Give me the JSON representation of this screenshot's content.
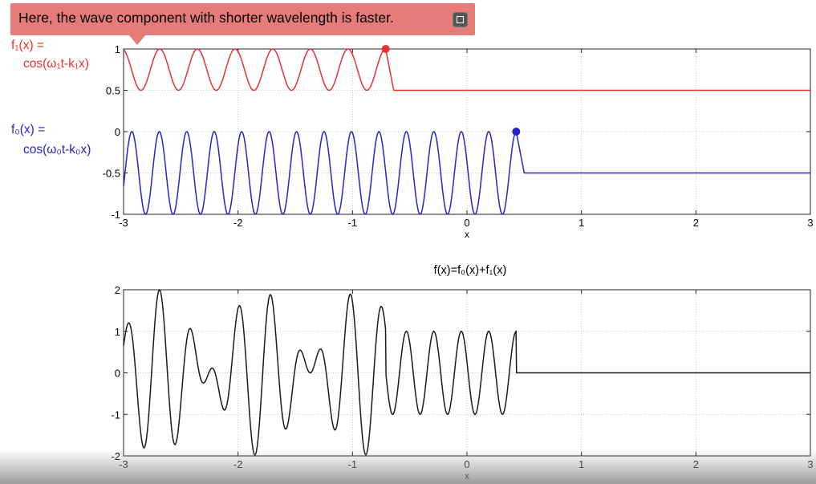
{
  "annotation": {
    "text": "Here, the wave component with shorter wavelength is faster.",
    "icon": "external-link-icon"
  },
  "labels": {
    "f1_line1": "f₁(x) =",
    "f1_line2": "cos(ω₁t-k₁x)",
    "f0_line1": "f₀(x) =",
    "f0_line2": "cos(ω₀t-k₀x)"
  },
  "colors": {
    "f1": "#e8302d",
    "f0": "#2424c8",
    "sum": "#1a1a1a",
    "grid": "#b9b9b9"
  },
  "chart_data": [
    {
      "type": "line",
      "title": "",
      "xlabel": "x",
      "ylabel": "",
      "xlim": [
        -3,
        3
      ],
      "ylim": [
        -1,
        1
      ],
      "xticks": [
        -3,
        -2,
        -1,
        0,
        1,
        2,
        3
      ],
      "yticks": [
        -1,
        -0.5,
        0,
        0.5,
        1
      ],
      "ytick_labels": [
        "-1",
        "-0.5",
        "0",
        "0.5",
        "1"
      ],
      "grid": true,
      "series": [
        {
          "name": "f₁(x) = cos(ω₁t-k₁x)",
          "color": "#e8302d",
          "form": "0.75+0.25*cos(k*(x-x_front))",
          "k": 19.1,
          "x_front": -0.71,
          "baseline": 0.5,
          "amplitude": 0.25,
          "center": 0.75,
          "front_marker": [
            -0.71,
            1.0
          ]
        },
        {
          "name": "f₀(x) = cos(ω₀t-k₀x)",
          "color": "#2424c8",
          "form": "-0.5+0.5*cos(k*(x-x_front))",
          "k": 26.2,
          "x_front": 0.43,
          "baseline": -0.5,
          "amplitude": 0.5,
          "center": -0.5,
          "front_marker": [
            0.43,
            0.0
          ]
        }
      ]
    },
    {
      "type": "line",
      "title": "f(x)=f₀(x)+f₁(x)",
      "xlabel": "x",
      "ylabel": "",
      "xlim": [
        -3,
        3
      ],
      "ylim": [
        -2,
        2
      ],
      "xticks": [
        -3,
        -2,
        -1,
        0,
        1,
        2,
        3
      ],
      "yticks": [
        -2,
        -1,
        0,
        1,
        2
      ],
      "grid": true,
      "series": [
        {
          "name": "f(x)=f₀(x)+f₁(x)",
          "color": "#1a1a1a",
          "form": "cos(k0*(x-x0)) for x<=x0 plus cos(k1*(x-x1)) for x<=x1, else 0",
          "k0": 26.2,
          "x0": 0.43,
          "k1": 19.1,
          "x1": -0.71
        }
      ]
    }
  ]
}
